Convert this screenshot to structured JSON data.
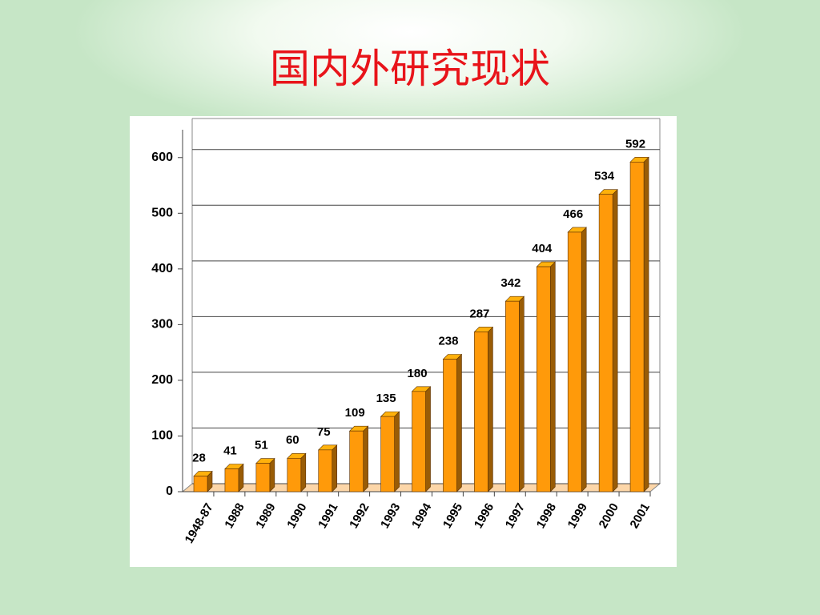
{
  "title": "国内外研究现状",
  "chart_data": {
    "type": "bar3d",
    "categories": [
      "1948-87",
      "1988",
      "1989",
      "1990",
      "1991",
      "1992",
      "1993",
      "1994",
      "1995",
      "1996",
      "1997",
      "1998",
      "1999",
      "2000",
      "2001"
    ],
    "values": [
      28,
      41,
      51,
      60,
      75,
      109,
      135,
      180,
      238,
      287,
      342,
      404,
      466,
      534,
      592
    ],
    "color": "#ff9a0a",
    "ylim": [
      0,
      650
    ],
    "yticks": [
      0,
      100,
      200,
      300,
      400,
      500,
      600
    ],
    "grid": true
  }
}
